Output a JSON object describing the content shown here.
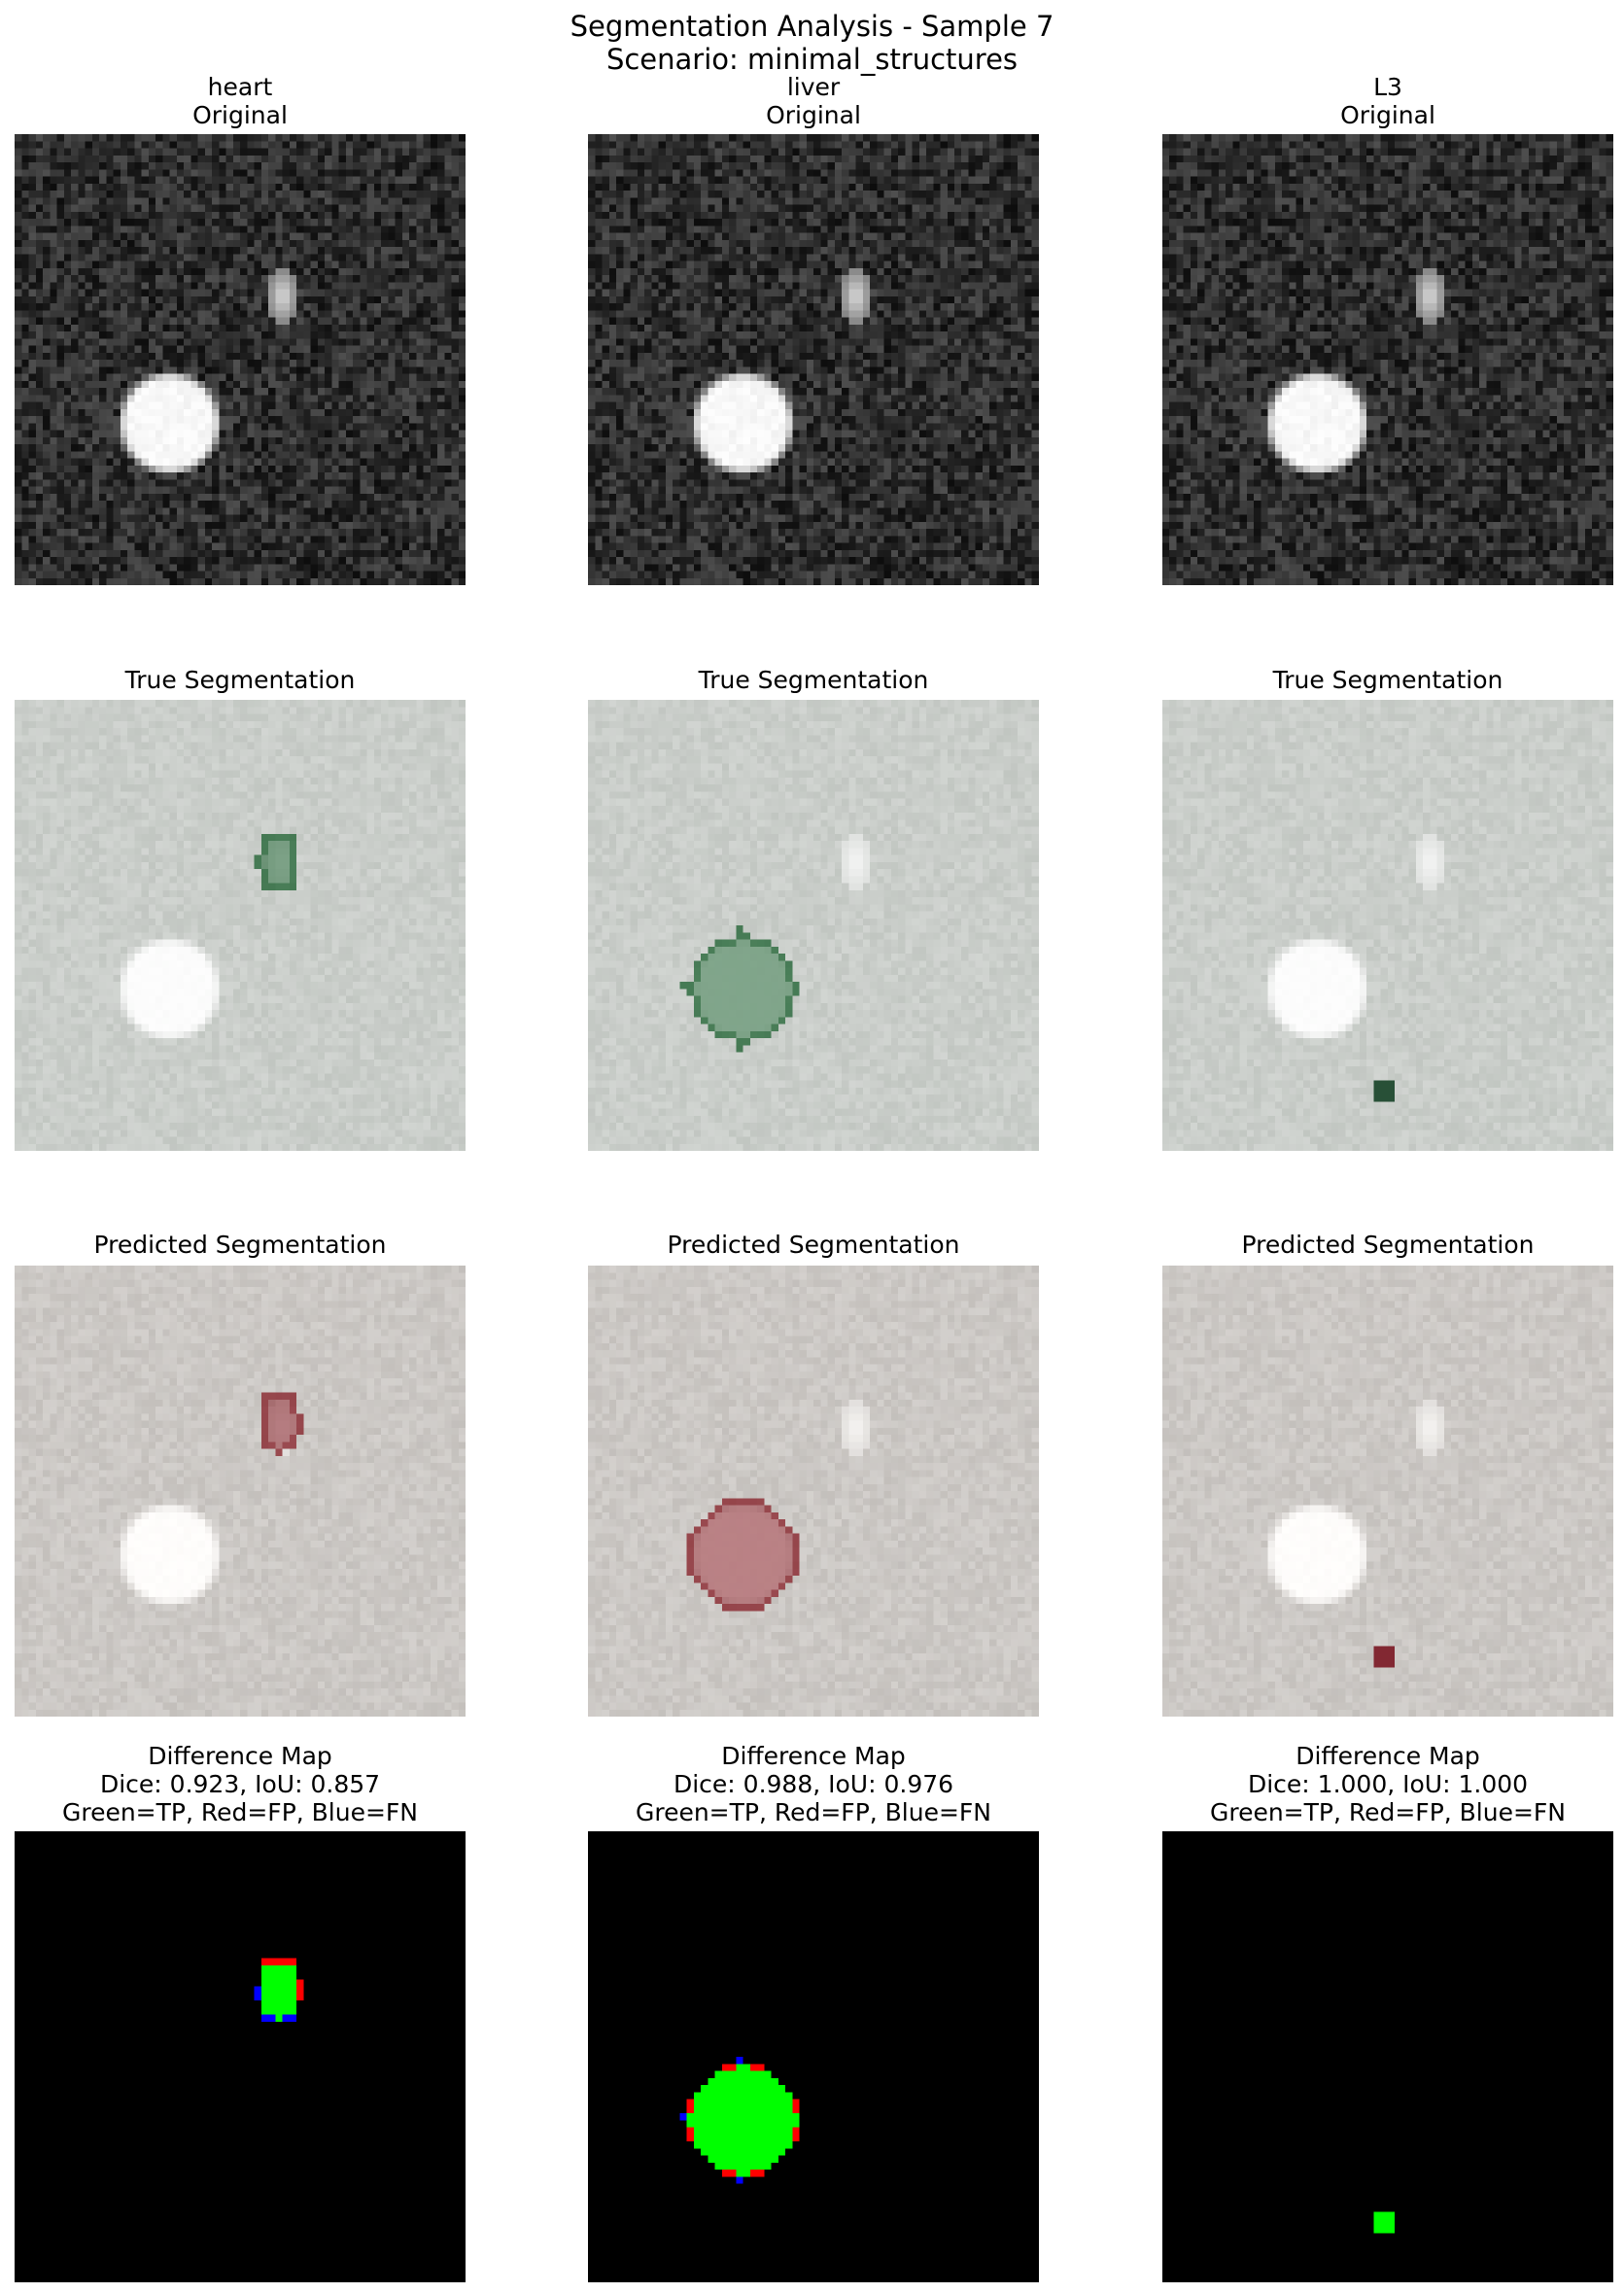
{
  "figure": {
    "title_line1": "Segmentation Analysis - Sample 7",
    "title_line2": "Scenario: minimal_structures"
  },
  "rows": [
    {
      "kind": "original",
      "panels": [
        {
          "title": [
            "heart",
            "Original"
          ]
        },
        {
          "title": [
            "liver",
            "Original"
          ]
        },
        {
          "title": [
            "L3",
            "Original"
          ]
        }
      ]
    },
    {
      "kind": "true_segmentation",
      "panels": [
        {
          "title": [
            "True Segmentation"
          ]
        },
        {
          "title": [
            "True Segmentation"
          ]
        },
        {
          "title": [
            "True Segmentation"
          ]
        }
      ]
    },
    {
      "kind": "predicted_segmentation",
      "panels": [
        {
          "title": [
            "Predicted Segmentation"
          ]
        },
        {
          "title": [
            "Predicted Segmentation"
          ]
        },
        {
          "title": [
            "Predicted Segmentation"
          ]
        }
      ]
    },
    {
      "kind": "difference_map",
      "panels": [
        {
          "title": [
            "Difference Map",
            "Dice: 0.923, IoU: 0.857",
            "Green=TP, Red=FP, Blue=FN"
          ]
        },
        {
          "title": [
            "Difference Map",
            "Dice: 0.988, IoU: 0.976",
            "Green=TP, Red=FP, Blue=FN"
          ]
        },
        {
          "title": [
            "Difference Map",
            "Dice: 1.000, IoU: 1.000",
            "Green=TP, Red=FP, Blue=FN"
          ]
        }
      ]
    }
  ],
  "colors": {
    "true_positive": "#00ff00",
    "false_positive": "#ff0000",
    "false_negative": "#0000ff",
    "true_mask_tint": "#2e6b3f",
    "pred_mask_tint": "#8c2f36",
    "diff_background": "#000000"
  }
}
